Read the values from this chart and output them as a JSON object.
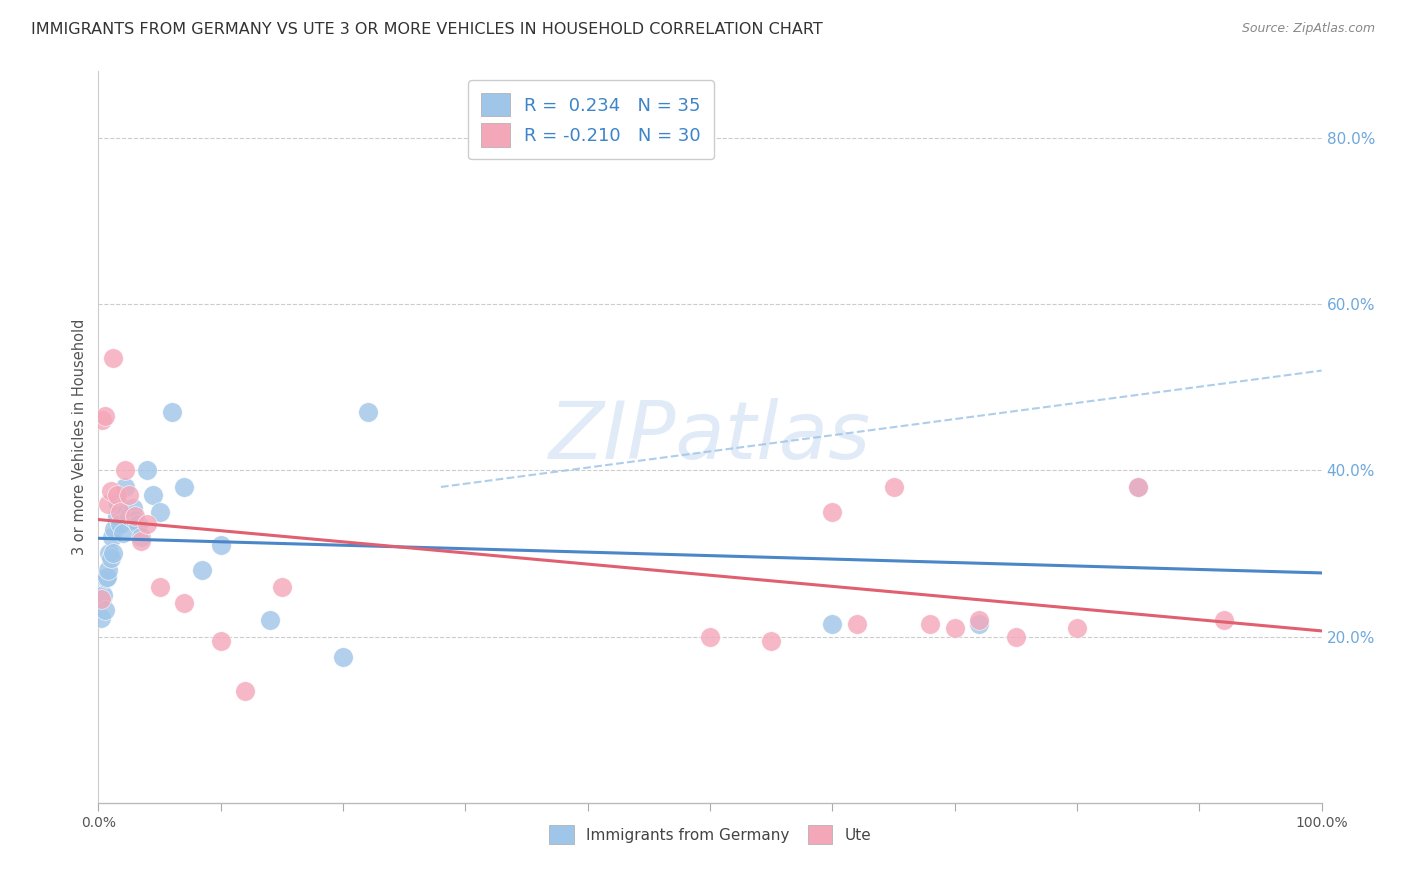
{
  "title": "IMMIGRANTS FROM GERMANY VS UTE 3 OR MORE VEHICLES IN HOUSEHOLD CORRELATION CHART",
  "source": "Source: ZipAtlas.com",
  "ylabel": "3 or more Vehicles in Household",
  "legend_label1": "Immigrants from Germany",
  "legend_label2": "Ute",
  "R1": 0.234,
  "N1": 35,
  "R2": -0.21,
  "N2": 30,
  "blue_color": "#9fc5e8",
  "pink_color": "#f4a7b9",
  "blue_line_color": "#4a86c8",
  "pink_line_color": "#e06070",
  "dash_color": "#9fc5e8",
  "watermark": "ZIPatlas",
  "title_fontsize": 11.5,
  "source_fontsize": 9,
  "blue_x": [
    0.2,
    0.3,
    0.4,
    0.5,
    0.6,
    0.7,
    0.8,
    0.9,
    1.0,
    1.1,
    1.2,
    1.3,
    1.5,
    1.6,
    1.8,
    2.0,
    2.2,
    2.5,
    2.8,
    3.0,
    3.2,
    3.5,
    4.0,
    4.5,
    5.0,
    6.0,
    7.0,
    8.5,
    10.0,
    14.0,
    20.0,
    22.0,
    60.0,
    72.0,
    85.0
  ],
  "blue_y": [
    0.222,
    0.245,
    0.25,
    0.232,
    0.27,
    0.272,
    0.28,
    0.3,
    0.295,
    0.32,
    0.3,
    0.33,
    0.345,
    0.36,
    0.335,
    0.325,
    0.38,
    0.345,
    0.355,
    0.34,
    0.335,
    0.32,
    0.4,
    0.37,
    0.35,
    0.47,
    0.38,
    0.28,
    0.31,
    0.22,
    0.175,
    0.47,
    0.215,
    0.215,
    0.38
  ],
  "pink_x": [
    0.2,
    0.3,
    0.5,
    0.8,
    1.0,
    1.2,
    1.5,
    1.8,
    2.2,
    2.5,
    3.0,
    3.5,
    4.0,
    5.0,
    7.0,
    10.0,
    12.0,
    15.0,
    50.0,
    55.0,
    60.0,
    62.0,
    65.0,
    68.0,
    70.0,
    72.0,
    75.0,
    80.0,
    85.0,
    92.0
  ],
  "pink_y": [
    0.245,
    0.46,
    0.465,
    0.36,
    0.375,
    0.535,
    0.37,
    0.35,
    0.4,
    0.37,
    0.345,
    0.315,
    0.335,
    0.26,
    0.24,
    0.195,
    0.135,
    0.26,
    0.2,
    0.195,
    0.35,
    0.215,
    0.38,
    0.215,
    0.21,
    0.22,
    0.2,
    0.21,
    0.38,
    0.22
  ],
  "xlim": [
    0.0,
    100.0
  ],
  "ylim_min": 0.0,
  "ylim_max": 0.88,
  "ytick_vals": [
    0.2,
    0.4,
    0.6,
    0.8
  ],
  "xtick_positions": [
    0,
    10,
    20,
    30,
    40,
    50,
    60,
    70,
    80,
    90,
    100
  ]
}
